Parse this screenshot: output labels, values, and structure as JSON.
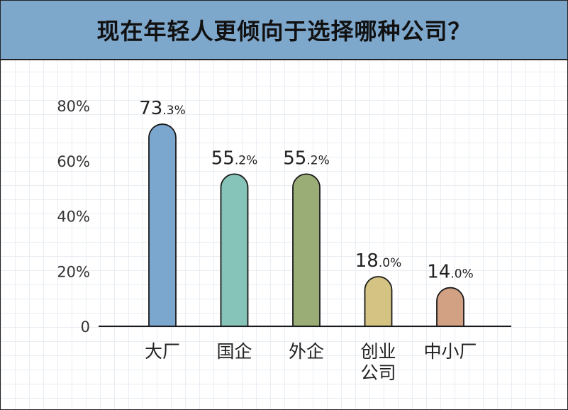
{
  "title": "现在年轻人更倾向于选择哪种公司？",
  "chart_data": {
    "type": "bar",
    "title": "现在年轻人更倾向于选择哪种公司？",
    "categories": [
      [
        "大厂"
      ],
      [
        "国企"
      ],
      [
        "外企"
      ],
      [
        "创业",
        "公司"
      ],
      [
        "中小厂"
      ]
    ],
    "values": [
      73.3,
      55.2,
      55.2,
      18.0,
      14.0
    ],
    "value_labels": [
      {
        "main": "73",
        "decimal": ".3%"
      },
      {
        "main": "55",
        "decimal": ".2%"
      },
      {
        "main": "55",
        "decimal": ".2%"
      },
      {
        "main": "18",
        "decimal": ".0%"
      },
      {
        "main": "14",
        "decimal": ".0%"
      }
    ],
    "colors": [
      "#7ba7cf",
      "#86c3b8",
      "#9bad77",
      "#d5c384",
      "#d2a184"
    ],
    "yticks": [
      "0",
      "20%",
      "40%",
      "60%",
      "80%"
    ],
    "ytick_values": [
      0,
      20,
      40,
      60,
      80
    ],
    "ylim": [
      0,
      80
    ],
    "xlabel": "",
    "ylabel": "",
    "grid": true
  }
}
